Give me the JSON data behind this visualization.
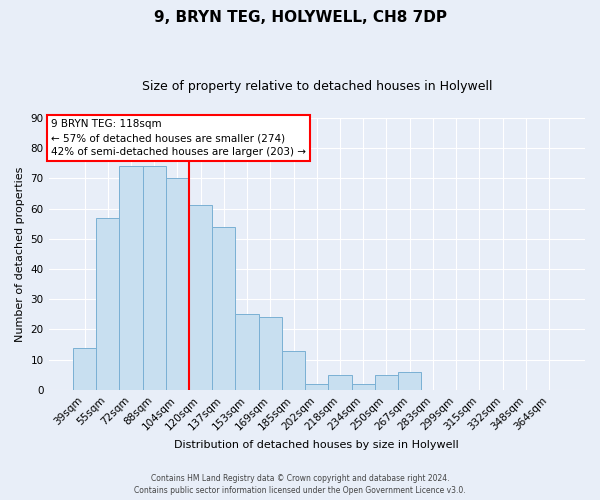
{
  "title": "9, BRYN TEG, HOLYWELL, CH8 7DP",
  "subtitle": "Size of property relative to detached houses in Holywell",
  "xlabel": "Distribution of detached houses by size in Holywell",
  "ylabel": "Number of detached properties",
  "bar_labels": [
    "39sqm",
    "55sqm",
    "72sqm",
    "88sqm",
    "104sqm",
    "120sqm",
    "137sqm",
    "153sqm",
    "169sqm",
    "185sqm",
    "202sqm",
    "218sqm",
    "234sqm",
    "250sqm",
    "267sqm",
    "283sqm",
    "299sqm",
    "315sqm",
    "332sqm",
    "348sqm",
    "364sqm"
  ],
  "bar_values": [
    14,
    57,
    74,
    74,
    70,
    61,
    54,
    25,
    24,
    13,
    2,
    5,
    2,
    5,
    6,
    0,
    0,
    0,
    0,
    0,
    0
  ],
  "bar_color": "#c8dff0",
  "bar_edge_color": "#7ab0d4",
  "vline_color": "red",
  "annotation_title": "9 BRYN TEG: 118sqm",
  "annotation_line1": "← 57% of detached houses are smaller (274)",
  "annotation_line2": "42% of semi-detached houses are larger (203) →",
  "ylim": [
    0,
    90
  ],
  "yticks": [
    0,
    10,
    20,
    30,
    40,
    50,
    60,
    70,
    80,
    90
  ],
  "footer_line1": "Contains HM Land Registry data © Crown copyright and database right 2024.",
  "footer_line2": "Contains public sector information licensed under the Open Government Licence v3.0.",
  "bg_color": "#e8eef8",
  "plot_bg_color": "#e8eef8",
  "grid_color": "#ffffff",
  "title_fontsize": 11,
  "subtitle_fontsize": 9,
  "xlabel_fontsize": 8,
  "ylabel_fontsize": 8,
  "tick_fontsize": 7.5,
  "annot_fontsize": 7.5,
  "footer_fontsize": 5.5
}
